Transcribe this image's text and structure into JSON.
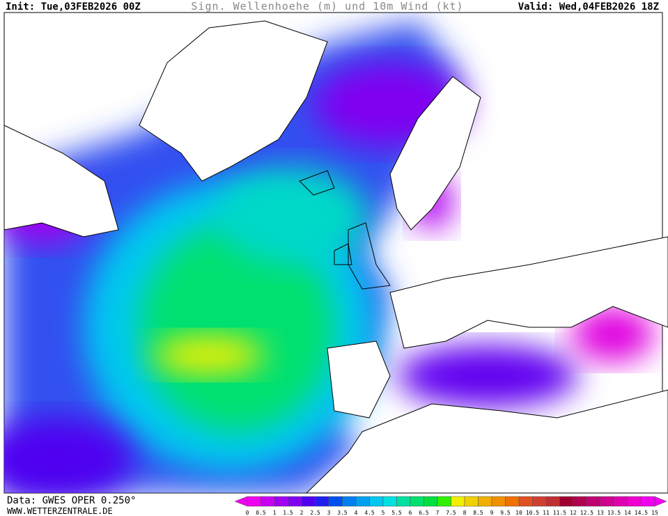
{
  "header": {
    "init": "Init: Tue,03FEB2026 00Z",
    "title": "Sign. Wellenhoehe (m) und 10m Wind (kt)",
    "valid": "Valid: Wed,04FEB2026 18Z"
  },
  "footer": {
    "data": "Data: GWES OPER 0.250°",
    "site": "WWW.WETTERZENTRALE.DE"
  },
  "legend": {
    "labels": [
      0,
      0.5,
      1,
      1.5,
      2,
      2.5,
      3,
      3.5,
      4,
      4.5,
      5,
      5.5,
      6,
      6.5,
      7,
      7.5,
      8,
      8.5,
      9,
      9.5,
      10,
      10.5,
      11,
      11.5,
      12,
      12.5,
      13,
      13.5,
      14,
      14.5,
      15
    ],
    "colors": [
      "#f000f0",
      "#c800f0",
      "#a000f0",
      "#8000f0",
      "#5000f0",
      "#2020f0",
      "#0050f0",
      "#0080f0",
      "#00a0f0",
      "#00c8f0",
      "#00e0e0",
      "#00e0a0",
      "#00e070",
      "#00e040",
      "#30f000",
      "#f0f000",
      "#f0d000",
      "#f0b000",
      "#f09000",
      "#f07000",
      "#e05020",
      "#d04030",
      "#c03030",
      "#a00030",
      "#b00050",
      "#c00070",
      "#d00090",
      "#e000b0",
      "#f000d0",
      "#f000f0"
    ],
    "under_color": "#f000f0",
    "over_color": "#f000f0"
  }
}
